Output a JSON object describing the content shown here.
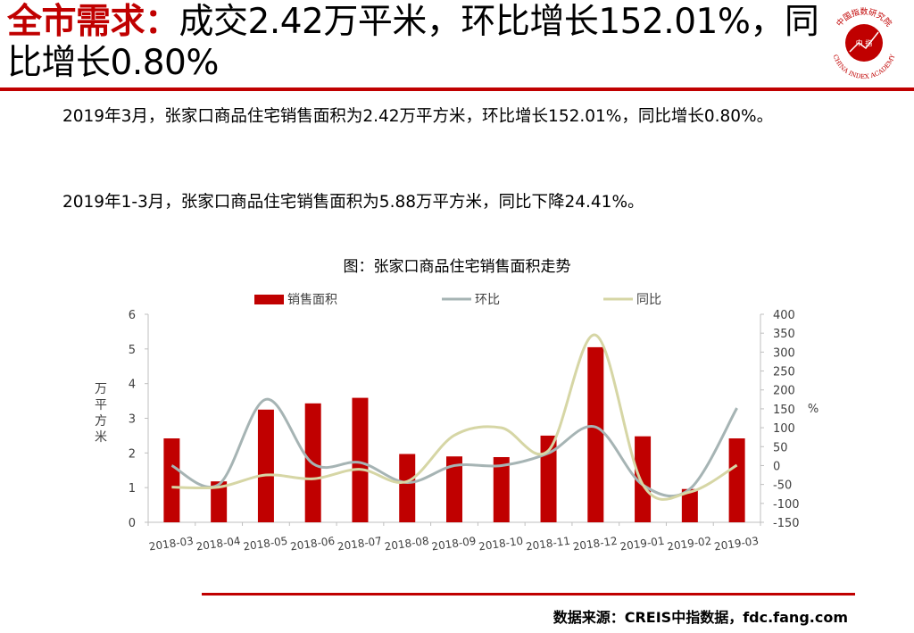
{
  "header": {
    "title_red": "全市需求：",
    "title_black": "成交2.42万平米，环比增长152.01%，同比增长0.80%",
    "logo_top_text": "中国指数研究院",
    "logo_center_text": "中  指",
    "logo_bottom_text": "CHINA INDEX ACADEMY"
  },
  "body": {
    "para1": "2019年3月，张家口商品住宅销售面积为2.42万平方米，环比增长152.01%，同比增长0.80%。",
    "para2": "2019年1-3月，张家口商品住宅销售面积为5.88万平方米，同比下降24.41%。"
  },
  "footer": {
    "source": "数据来源：CREIS中指数据，fdc.fang.com"
  },
  "colors": {
    "accent": "#c00000",
    "bar": "#c00000",
    "mom_line": "#a6b4b4",
    "yoy_line": "#d6d6a5"
  },
  "chart_data": {
    "type": "bar",
    "title": "图：张家口商品住宅销售面积走势",
    "ylabel": "万平方米",
    "y2label": "%",
    "ylim": [
      0,
      6
    ],
    "y2lim": [
      -150,
      400
    ],
    "yticks": [
      0,
      1,
      2,
      3,
      4,
      5,
      6
    ],
    "y2ticks": [
      -150,
      -100,
      -50,
      0,
      50,
      100,
      150,
      200,
      250,
      300,
      350,
      400
    ],
    "legend_position": "top",
    "grid": false,
    "categories": [
      "2018-03",
      "2018-04",
      "2018-05",
      "2018-06",
      "2018-07",
      "2018-08",
      "2018-09",
      "2018-10",
      "2018-11",
      "2018-12",
      "2019-01",
      "2019-02",
      "2019-03"
    ],
    "series": [
      {
        "name": "销售面积",
        "type": "bar",
        "axis": "left",
        "values": [
          2.42,
          1.18,
          3.25,
          3.43,
          3.59,
          1.97,
          1.9,
          1.88,
          2.5,
          5.05,
          2.48,
          0.96,
          2.42
        ]
      },
      {
        "name": "环比",
        "type": "line",
        "axis": "right",
        "values": [
          0,
          -50,
          175,
          5,
          8,
          -45,
          0,
          0,
          33,
          102,
          -51,
          -62,
          152
        ]
      },
      {
        "name": "同比",
        "type": "line",
        "axis": "right",
        "values": [
          -57,
          -57,
          -25,
          -35,
          -10,
          -42,
          80,
          100,
          40,
          345,
          -50,
          -70,
          1
        ]
      }
    ]
  }
}
